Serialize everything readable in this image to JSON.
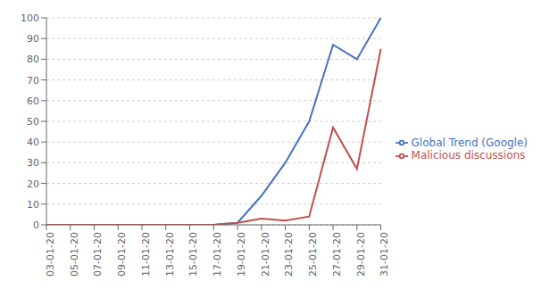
{
  "chart_data": {
    "type": "line",
    "categories": [
      "03-01-20",
      "05-01-20",
      "07-01-20",
      "09-01-20",
      "11-01-20",
      "13-01-20",
      "15-01-20",
      "17-01-20",
      "19-01-20",
      "21-01-20",
      "23-01-20",
      "25-01-20",
      "27-01-20",
      "29-01-20",
      "31-01-20"
    ],
    "series": [
      {
        "name": "Global Trend (Google)",
        "color": "#4472C4",
        "values": [
          0,
          0,
          0,
          0,
          0,
          0,
          0,
          0,
          1,
          14,
          30,
          50,
          87,
          80,
          100
        ]
      },
      {
        "name": "Malicious discussions",
        "color": "#C0504D",
        "values": [
          0,
          0,
          0,
          0,
          0,
          0,
          0,
          0,
          1,
          3,
          2,
          4,
          47,
          27,
          85
        ]
      }
    ],
    "ylim": [
      0,
      100
    ],
    "yticks": [
      0,
      10,
      20,
      30,
      40,
      50,
      60,
      70,
      80,
      90,
      100
    ],
    "grid": true,
    "legend": "right"
  }
}
